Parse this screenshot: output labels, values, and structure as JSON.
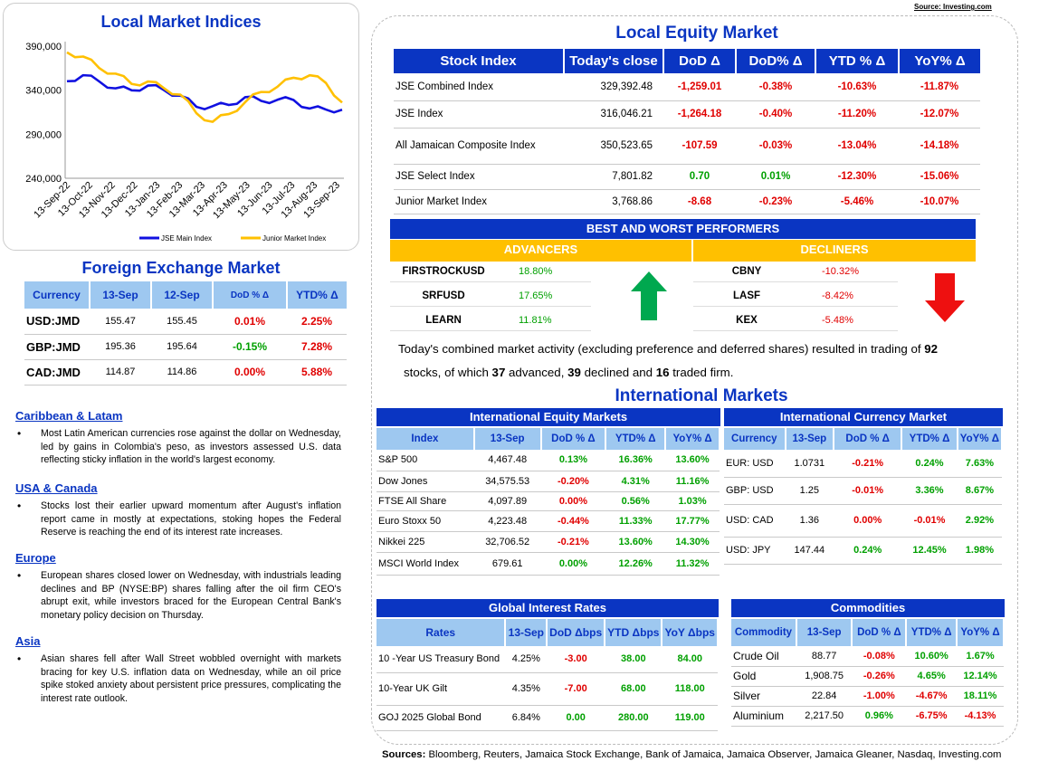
{
  "source_note": "Source: Investing.com",
  "indices_chart": {
    "title": "Local Market Indices",
    "chart_data": {
      "type": "line",
      "ylim": [
        240000,
        390000
      ],
      "y_ticks": [
        "390,000",
        "340,000",
        "290,000",
        "240,000"
      ],
      "x_ticks": [
        "13-Sep-22",
        "13-Oct-22",
        "13-Nov-22",
        "13-Dec-22",
        "13-Jan-23",
        "13-Feb-23",
        "13-Mar-23",
        "13-Apr-23",
        "13-May-23",
        "13-Jun-23",
        "13-Jul-23",
        "13-Aug-23",
        "13-Sep-23"
      ],
      "series": [
        {
          "name": "JSE Main Index",
          "color": "#1010e0",
          "values": [
            352000,
            357000,
            348000,
            343000,
            339000,
            347000,
            340000,
            332000,
            322000,
            321000,
            325000,
            332000,
            326000,
            330000,
            328000,
            321000,
            318000,
            316000
          ]
        },
        {
          "name": "Junior Market Index",
          "color": "#ffc000",
          "values": [
            382000,
            380000,
            365000,
            357000,
            348000,
            349000,
            344000,
            335000,
            312000,
            305000,
            312000,
            328000,
            338000,
            342000,
            355000,
            356000,
            350000,
            326000
          ]
        }
      ]
    }
  },
  "fx": {
    "title": "Foreign Exchange Market",
    "headers": [
      "Currency",
      "13-Sep",
      "12-Sep",
      "DoD % Δ",
      "YTD% Δ"
    ],
    "rows": [
      {
        "cur": "USD:JMD",
        "a": "155.47",
        "b": "155.45",
        "dod": "0.01%",
        "ytd": "2.25%",
        "dod_c": "red",
        "ytd_c": "red"
      },
      {
        "cur": "GBP:JMD",
        "a": "195.36",
        "b": "195.64",
        "dod": "-0.15%",
        "ytd": "7.28%",
        "dod_c": "grn",
        "ytd_c": "red"
      },
      {
        "cur": "CAD:JMD",
        "a": "114.87",
        "b": "114.86",
        "dod": "0.00%",
        "ytd": "5.88%",
        "dod_c": "red",
        "ytd_c": "red"
      }
    ]
  },
  "news": [
    {
      "heading": "Caribbean & Latam",
      "text": "Most Latin American currencies rose against the dollar on Wednesday, led by gains in Colombia's peso, as investors assessed U.S. data reflecting sticky inflation in the world's largest economy."
    },
    {
      "heading": "USA & Canada",
      "text": "Stocks lost their earlier upward momentum after August's inflation report came in mostly at expectations, stoking hopes the Federal Reserve is reaching the end of its interest rate increases."
    },
    {
      "heading": "Europe",
      "text": "European shares closed lower on Wednesday, with industrials leading declines and BP (NYSE:BP) shares falling after the oil firm CEO's abrupt exit, while investors braced for the European Central Bank's monetary policy decision on Thursday."
    },
    {
      "heading": "Asia",
      "text": "Asian shares fell after Wall Street wobbled overnight with markets bracing for key U.S. inflation data on Wednesday, while an oil price spike stoked anxiety about persistent price pressures, complicating the interest rate outlook."
    }
  ],
  "equity": {
    "title": "Local Equity Market",
    "headers": [
      "Stock Index",
      "Today's close",
      "DoD Δ",
      "DoD% Δ",
      "YTD % Δ",
      "YoY% Δ"
    ],
    "rows": [
      {
        "name": "JSE Combined Index",
        "close": "329,392.48",
        "dod": "-1,259.01",
        "dodp": "-0.38%",
        "ytd": "-10.63%",
        "yoy": "-11.87%",
        "c": "red"
      },
      {
        "name": "JSE Index",
        "close": "316,046.21",
        "dod": "-1,264.18",
        "dodp": "-0.40%",
        "ytd": "-11.20%",
        "yoy": "-12.07%",
        "c": "red"
      },
      {
        "name": "All Jamaican Composite Index",
        "close": "350,523.65",
        "dod": "-107.59",
        "dodp": "-0.03%",
        "ytd": "-13.04%",
        "yoy": "-14.18%",
        "c": "red"
      },
      {
        "name": "JSE Select Index",
        "close": "7,801.82",
        "dod": "0.70",
        "dodp": "0.01%",
        "ytd": "-12.30%",
        "yoy": "-15.06%",
        "c": "grn"
      },
      {
        "name": "Junior Market Index",
        "close": "3,768.86",
        "dod": "-8.68",
        "dodp": "-0.23%",
        "ytd": "-5.46%",
        "yoy": "-10.07%",
        "c": "red"
      }
    ]
  },
  "performers": {
    "title": "BEST AND WORST PERFORMERS",
    "adv_label": "ADVANCERS",
    "dec_label": "DECLINERS",
    "advancers": [
      {
        "sym": "FIRSTROCKUSD",
        "pct": "18.80%"
      },
      {
        "sym": "SRFUSD",
        "pct": "17.65%"
      },
      {
        "sym": "LEARN",
        "pct": "11.81%"
      }
    ],
    "decliners": [
      {
        "sym": "CBNY",
        "pct": "-10.32%"
      },
      {
        "sym": "LASF",
        "pct": "-8.42%"
      },
      {
        "sym": "KEX",
        "pct": "-5.48%"
      }
    ]
  },
  "summary": {
    "p1": "Today's combined market activity (excluding preference and deferred shares) resulted in trading of ",
    "total": "92",
    "p2": "stocks, of which ",
    "adv": "37",
    "p3": " advanced, ",
    "dec": "39",
    "p4": " declined and ",
    "firm": "16",
    "p5": " traded firm."
  },
  "intl": {
    "title": "International Markets",
    "equity": {
      "title": "International Equity Markets",
      "headers": [
        "Index",
        "13-Sep",
        "DoD % Δ",
        "YTD% Δ",
        "YoY% Δ"
      ],
      "rows": [
        {
          "name": "S&P 500",
          "v": "4,467.48",
          "dod": "0.13%",
          "ytd": "16.36%",
          "yoy": "13.60%",
          "c": [
            "grn",
            "grn",
            "grn"
          ]
        },
        {
          "name": "Dow Jones",
          "v": "34,575.53",
          "dod": "-0.20%",
          "ytd": "4.31%",
          "yoy": "11.16%",
          "c": [
            "red",
            "grn",
            "grn"
          ]
        },
        {
          "name": "FTSE All Share",
          "v": "4,097.89",
          "dod": "0.00%",
          "ytd": "0.56%",
          "yoy": "1.03%",
          "c": [
            "red",
            "grn",
            "grn"
          ]
        },
        {
          "name": "Euro Stoxx 50",
          "v": "4,223.48",
          "dod": "-0.44%",
          "ytd": "11.33%",
          "yoy": "17.77%",
          "c": [
            "red",
            "grn",
            "grn"
          ]
        },
        {
          "name": "Nikkei 225",
          "v": "32,706.52",
          "dod": "-0.21%",
          "ytd": "13.60%",
          "yoy": "14.30%",
          "c": [
            "red",
            "grn",
            "grn"
          ]
        },
        {
          "name": "MSCI World Index",
          "v": "679.61",
          "dod": "0.00%",
          "ytd": "12.26%",
          "yoy": "11.32%",
          "c": [
            "grn",
            "grn",
            "grn"
          ]
        }
      ]
    },
    "currency": {
      "title": "International Currency Market",
      "headers": [
        "Currency",
        "13-Sep",
        "DoD % Δ",
        "YTD% Δ",
        "YoY% Δ"
      ],
      "rows": [
        {
          "name": "EUR: USD",
          "v": "1.0731",
          "dod": "-0.21%",
          "ytd": "0.24%",
          "yoy": "7.63%",
          "c": [
            "red",
            "grn",
            "grn"
          ]
        },
        {
          "name": "GBP: USD",
          "v": "1.25",
          "dod": "-0.01%",
          "ytd": "3.36%",
          "yoy": "8.67%",
          "c": [
            "red",
            "grn",
            "grn"
          ]
        },
        {
          "name": "USD: CAD",
          "v": "1.36",
          "dod": "0.00%",
          "ytd": "-0.01%",
          "yoy": "2.92%",
          "c": [
            "red",
            "red",
            "grn"
          ]
        },
        {
          "name": "USD: JPY",
          "v": "147.44",
          "dod": "0.24%",
          "ytd": "12.45%",
          "yoy": "1.98%",
          "c": [
            "grn",
            "grn",
            "grn"
          ]
        }
      ]
    },
    "rates": {
      "title": "Global Interest Rates",
      "headers": [
        "Rates",
        "13-Sep",
        "DoD Δbps",
        "YTD Δbps",
        "YoY Δbps"
      ],
      "rows": [
        {
          "name": "10 -Year US Treasury Bond",
          "v": "4.25%",
          "dod": "-3.00",
          "ytd": "38.00",
          "yoy": "84.00",
          "c": [
            "red",
            "grn",
            "grn"
          ]
        },
        {
          "name": "10-Year UK Gilt",
          "v": "4.35%",
          "dod": "-7.00",
          "ytd": "68.00",
          "yoy": "118.00",
          "c": [
            "red",
            "grn",
            "grn"
          ]
        },
        {
          "name": "GOJ 2025 Global Bond",
          "v": "6.84%",
          "dod": "0.00",
          "ytd": "280.00",
          "yoy": "119.00",
          "c": [
            "grn",
            "grn",
            "grn"
          ]
        }
      ]
    },
    "commodities": {
      "title": "Commodities",
      "headers": [
        "Commodity",
        "13-Sep",
        "DoD % Δ",
        "YTD% Δ",
        "YoY% Δ"
      ],
      "rows": [
        {
          "name": "Crude Oil",
          "v": "88.77",
          "dod": "-0.08%",
          "ytd": "10.60%",
          "yoy": "1.67%",
          "c": [
            "red",
            "grn",
            "grn"
          ]
        },
        {
          "name": "Gold",
          "v": "1,908.75",
          "dod": "-0.26%",
          "ytd": "4.65%",
          "yoy": "12.14%",
          "c": [
            "red",
            "grn",
            "grn"
          ]
        },
        {
          "name": "Silver",
          "v": "22.84",
          "dod": "-1.00%",
          "ytd": "-4.67%",
          "yoy": "18.11%",
          "c": [
            "red",
            "red",
            "grn"
          ]
        },
        {
          "name": "Aluminium",
          "v": "2,217.50",
          "dod": "0.96%",
          "ytd": "-6.75%",
          "yoy": "-4.13%",
          "c": [
            "grn",
            "red",
            "red"
          ]
        }
      ]
    }
  },
  "sources": {
    "label": "Sources:",
    "text": " Bloomberg, Reuters, Jamaica Stock Exchange, Bank of Jamaica, Jamaica Observer, Jamaica Gleaner, Nasdaq, Investing.com"
  }
}
